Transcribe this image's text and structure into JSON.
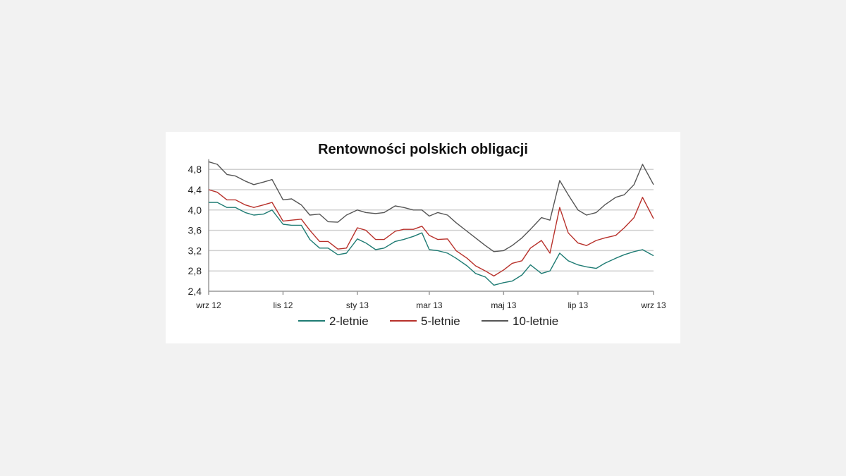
{
  "chart_data": {
    "type": "line",
    "title": "Rentowności polskich obligacji",
    "xlabel": "",
    "ylabel": "",
    "ylim": [
      2.4,
      5.0
    ],
    "yticks": [
      "2,4",
      "2,8",
      "3,2",
      "3,6",
      "4,0",
      "4,4",
      "4,8"
    ],
    "ytick_values": [
      2.4,
      2.8,
      3.2,
      3.6,
      4.0,
      4.4,
      4.8
    ],
    "xticks": [
      "wrz 12",
      "lis 12",
      "sty 13",
      "mar 13",
      "maj 13",
      "lip 13",
      "wrz 13"
    ],
    "xtick_dates": [
      "2012-09-01",
      "2012-11-01",
      "2013-01-01",
      "2013-03-01",
      "2013-05-01",
      "2013-07-01",
      "2013-09-01"
    ],
    "grid": "horizontal",
    "legend": "bottom",
    "x": [
      "2012-09-01",
      "2012-09-08",
      "2012-09-16",
      "2012-09-23",
      "2012-10-01",
      "2012-10-08",
      "2012-10-16",
      "2012-10-23",
      "2012-11-01",
      "2012-11-08",
      "2012-11-16",
      "2012-11-23",
      "2012-12-01",
      "2012-12-08",
      "2012-12-16",
      "2012-12-23",
      "2013-01-01",
      "2013-01-08",
      "2013-01-16",
      "2013-01-23",
      "2013-02-01",
      "2013-02-08",
      "2013-02-16",
      "2013-02-23",
      "2013-03-01",
      "2013-03-08",
      "2013-03-16",
      "2013-03-23",
      "2013-04-01",
      "2013-04-08",
      "2013-04-16",
      "2013-04-23",
      "2013-05-01",
      "2013-05-08",
      "2013-05-16",
      "2013-05-23",
      "2013-06-01",
      "2013-06-08",
      "2013-06-16",
      "2013-06-23",
      "2013-07-01",
      "2013-07-08",
      "2013-07-16",
      "2013-07-23",
      "2013-08-01",
      "2013-08-08",
      "2013-08-16",
      "2013-08-23",
      "2013-09-01"
    ],
    "series": [
      {
        "name": "2-letnie",
        "color": "#1e7b73",
        "values": [
          4.15,
          4.15,
          4.05,
          4.05,
          3.95,
          3.9,
          3.92,
          4.0,
          3.72,
          3.7,
          3.7,
          3.42,
          3.25,
          3.25,
          3.12,
          3.15,
          3.43,
          3.35,
          3.22,
          3.25,
          3.38,
          3.42,
          3.48,
          3.55,
          3.22,
          3.2,
          3.15,
          3.05,
          2.9,
          2.75,
          2.68,
          2.52,
          2.57,
          2.6,
          2.72,
          2.92,
          2.75,
          2.8,
          3.15,
          3.0,
          2.92,
          2.88,
          2.85,
          2.95,
          3.05,
          3.12,
          3.18,
          3.22,
          3.1
        ]
      },
      {
        "name": "5-letnie",
        "color": "#b8312b",
        "values": [
          4.4,
          4.35,
          4.2,
          4.2,
          4.1,
          4.05,
          4.1,
          4.15,
          3.78,
          3.8,
          3.82,
          3.6,
          3.38,
          3.38,
          3.23,
          3.25,
          3.65,
          3.6,
          3.42,
          3.42,
          3.58,
          3.62,
          3.62,
          3.68,
          3.5,
          3.42,
          3.43,
          3.2,
          3.05,
          2.9,
          2.8,
          2.7,
          2.82,
          2.95,
          3.0,
          3.25,
          3.4,
          3.15,
          4.05,
          3.55,
          3.35,
          3.3,
          3.4,
          3.45,
          3.5,
          3.65,
          3.85,
          4.25,
          3.83
        ]
      },
      {
        "name": "10-letnie",
        "color": "#555555",
        "values": [
          4.95,
          4.9,
          4.7,
          4.67,
          4.57,
          4.5,
          4.55,
          4.6,
          4.2,
          4.22,
          4.1,
          3.9,
          3.92,
          3.77,
          3.76,
          3.9,
          4.0,
          3.95,
          3.93,
          3.95,
          4.08,
          4.05,
          4.0,
          4.0,
          3.88,
          3.95,
          3.9,
          3.75,
          3.58,
          3.45,
          3.3,
          3.18,
          3.2,
          3.3,
          3.45,
          3.62,
          3.85,
          3.8,
          4.58,
          4.3,
          4.0,
          3.9,
          3.95,
          4.1,
          4.25,
          4.3,
          4.5,
          4.9,
          4.5
        ]
      }
    ]
  }
}
